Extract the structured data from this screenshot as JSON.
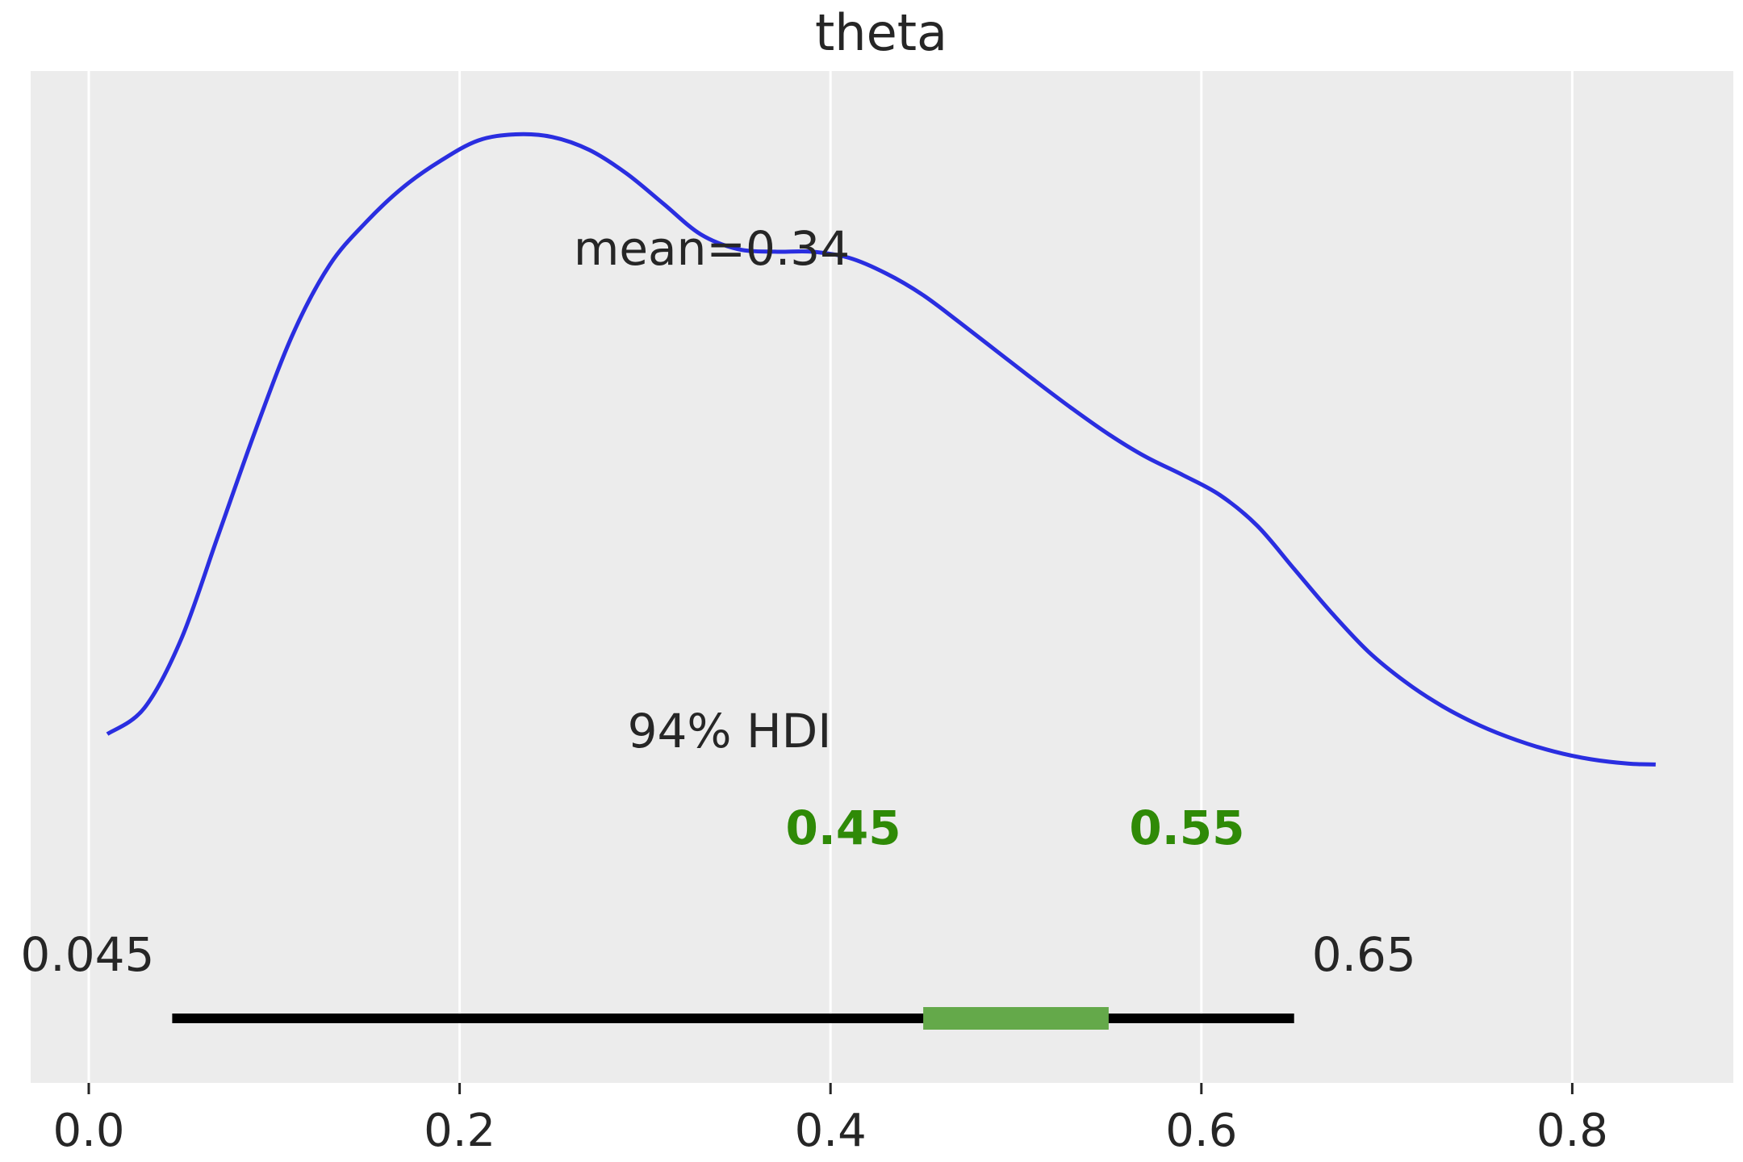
{
  "chart_data": {
    "type": "line",
    "title": "theta",
    "xlabel": "",
    "ylabel": "",
    "xlim": [
      -0.08,
      0.885
    ],
    "grid": true,
    "x_ticks": [
      0.0,
      0.2,
      0.4,
      0.6,
      0.8
    ],
    "x_tick_labels": [
      "0.0",
      "0.2",
      "0.4",
      "0.6",
      "0.8"
    ],
    "series": [
      {
        "kind": "density",
        "color": "#2a2ee0",
        "points": [
          [
            0.01,
            0.29
          ],
          [
            0.03,
            0.32
          ],
          [
            0.05,
            0.4
          ],
          [
            0.07,
            0.52
          ],
          [
            0.09,
            0.64
          ],
          [
            0.11,
            0.75
          ],
          [
            0.13,
            0.83
          ],
          [
            0.15,
            0.88
          ],
          [
            0.17,
            0.92
          ],
          [
            0.19,
            0.95
          ],
          [
            0.21,
            0.973
          ],
          [
            0.23,
            0.98
          ],
          [
            0.25,
            0.977
          ],
          [
            0.27,
            0.962
          ],
          [
            0.29,
            0.935
          ],
          [
            0.31,
            0.9
          ],
          [
            0.33,
            0.865
          ],
          [
            0.35,
            0.848
          ],
          [
            0.37,
            0.845
          ],
          [
            0.39,
            0.845
          ],
          [
            0.41,
            0.838
          ],
          [
            0.43,
            0.82
          ],
          [
            0.45,
            0.795
          ],
          [
            0.47,
            0.763
          ],
          [
            0.49,
            0.73
          ],
          [
            0.51,
            0.697
          ],
          [
            0.53,
            0.665
          ],
          [
            0.55,
            0.635
          ],
          [
            0.57,
            0.609
          ],
          [
            0.59,
            0.588
          ],
          [
            0.61,
            0.565
          ],
          [
            0.63,
            0.53
          ],
          [
            0.65,
            0.48
          ],
          [
            0.67,
            0.43
          ],
          [
            0.69,
            0.385
          ],
          [
            0.71,
            0.35
          ],
          [
            0.73,
            0.322
          ],
          [
            0.75,
            0.3
          ],
          [
            0.77,
            0.283
          ],
          [
            0.79,
            0.27
          ],
          [
            0.81,
            0.261
          ],
          [
            0.83,
            0.256
          ],
          [
            0.845,
            0.255
          ]
        ]
      }
    ],
    "mean": {
      "value": 0.34,
      "label": "mean=0.34"
    },
    "hdi": {
      "prob_label": "94% HDI",
      "low": 0.045,
      "high": 0.65,
      "low_label": "0.045",
      "high_label": "0.65",
      "color": "#000000"
    },
    "rope": {
      "low": 0.45,
      "high": 0.55,
      "low_label": "0.45",
      "high_label": "0.55",
      "color": "#2f8a07",
      "bar_color": "#64a94a"
    },
    "colors": {
      "background": "#ececec",
      "grid": "#ffffff",
      "text": "#262626"
    }
  }
}
